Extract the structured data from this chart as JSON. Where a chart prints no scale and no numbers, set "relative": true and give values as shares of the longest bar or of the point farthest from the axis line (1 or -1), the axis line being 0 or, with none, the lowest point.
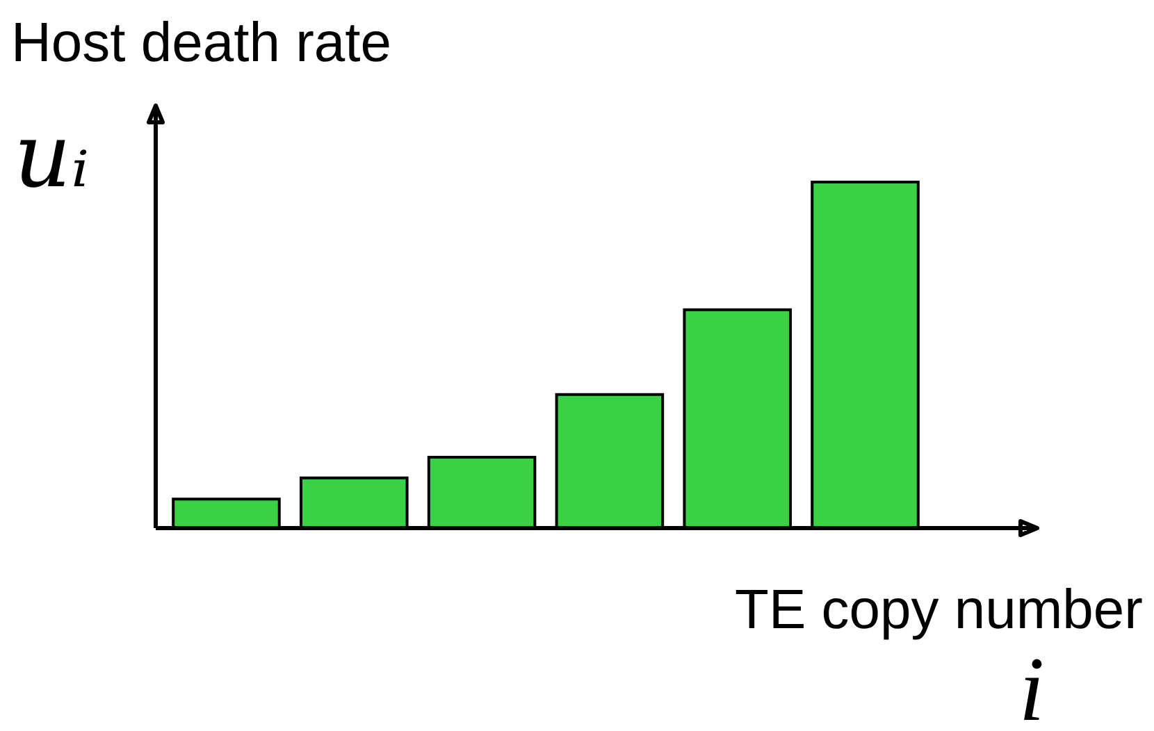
{
  "chart_data": {
    "type": "bar",
    "title": "Host death rate",
    "ylabel": "uᵢ",
    "xlabel": "TE copy number",
    "annotations": [
      "i"
    ],
    "categories": [
      null,
      null,
      null,
      null,
      null,
      null
    ],
    "values": [
      0.084,
      0.145,
      0.205,
      0.386,
      0.631,
      1
    ],
    "color": "#3ad144",
    "relative": true
  }
}
